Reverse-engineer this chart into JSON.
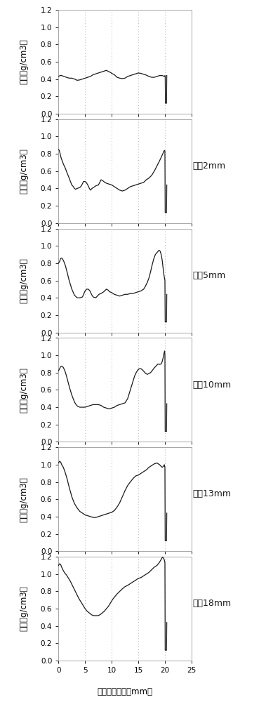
{
  "panels": [
    {
      "label": "",
      "profile": [
        [
          0.0,
          0.43
        ],
        [
          0.3,
          0.44
        ],
        [
          0.6,
          0.44
        ],
        [
          1.0,
          0.43
        ],
        [
          1.5,
          0.42
        ],
        [
          2.0,
          0.41
        ],
        [
          2.5,
          0.41
        ],
        [
          3.0,
          0.4
        ],
        [
          3.5,
          0.385
        ],
        [
          4.0,
          0.39
        ],
        [
          4.5,
          0.4
        ],
        [
          5.0,
          0.41
        ],
        [
          5.5,
          0.42
        ],
        [
          6.0,
          0.43
        ],
        [
          6.5,
          0.45
        ],
        [
          7.0,
          0.46
        ],
        [
          7.5,
          0.47
        ],
        [
          8.0,
          0.48
        ],
        [
          8.5,
          0.49
        ],
        [
          9.0,
          0.5
        ],
        [
          9.3,
          0.49
        ],
        [
          9.8,
          0.475
        ],
        [
          10.0,
          0.465
        ],
        [
          10.5,
          0.45
        ],
        [
          11.0,
          0.42
        ],
        [
          11.5,
          0.41
        ],
        [
          12.0,
          0.405
        ],
        [
          12.5,
          0.41
        ],
        [
          13.0,
          0.43
        ],
        [
          13.5,
          0.44
        ],
        [
          14.0,
          0.45
        ],
        [
          14.5,
          0.46
        ],
        [
          15.0,
          0.47
        ],
        [
          15.5,
          0.465
        ],
        [
          16.0,
          0.455
        ],
        [
          16.5,
          0.445
        ],
        [
          17.0,
          0.43
        ],
        [
          17.5,
          0.42
        ],
        [
          18.0,
          0.42
        ],
        [
          18.5,
          0.43
        ],
        [
          19.0,
          0.44
        ],
        [
          19.5,
          0.44
        ],
        [
          19.9,
          0.43
        ],
        [
          20.0,
          0.44
        ],
        [
          20.05,
          0.435
        ],
        [
          20.1,
          0.12
        ],
        [
          20.3,
          0.12
        ],
        [
          20.35,
          0.44
        ]
      ]
    },
    {
      "label": "压爰2mm",
      "profile": [
        [
          0.0,
          0.85
        ],
        [
          0.15,
          0.84
        ],
        [
          0.3,
          0.8
        ],
        [
          0.5,
          0.75
        ],
        [
          0.8,
          0.7
        ],
        [
          1.0,
          0.67
        ],
        [
          1.3,
          0.63
        ],
        [
          1.6,
          0.58
        ],
        [
          2.0,
          0.52
        ],
        [
          2.3,
          0.47
        ],
        [
          2.5,
          0.44
        ],
        [
          2.8,
          0.42
        ],
        [
          3.0,
          0.4
        ],
        [
          3.2,
          0.39
        ],
        [
          3.5,
          0.4
        ],
        [
          4.0,
          0.41
        ],
        [
          4.3,
          0.43
        ],
        [
          4.7,
          0.48
        ],
        [
          5.0,
          0.48
        ],
        [
          5.2,
          0.47
        ],
        [
          5.5,
          0.44
        ],
        [
          5.8,
          0.4
        ],
        [
          6.0,
          0.38
        ],
        [
          6.3,
          0.4
        ],
        [
          6.8,
          0.42
        ],
        [
          7.0,
          0.43
        ],
        [
          7.5,
          0.44
        ],
        [
          8.0,
          0.5
        ],
        [
          8.3,
          0.49
        ],
        [
          8.7,
          0.47
        ],
        [
          9.0,
          0.46
        ],
        [
          9.5,
          0.45
        ],
        [
          10.0,
          0.44
        ],
        [
          10.5,
          0.42
        ],
        [
          11.0,
          0.4
        ],
        [
          11.5,
          0.38
        ],
        [
          12.0,
          0.37
        ],
        [
          12.5,
          0.38
        ],
        [
          13.0,
          0.4
        ],
        [
          13.5,
          0.42
        ],
        [
          14.0,
          0.43
        ],
        [
          14.5,
          0.44
        ],
        [
          15.0,
          0.45
        ],
        [
          15.5,
          0.46
        ],
        [
          16.0,
          0.47
        ],
        [
          16.5,
          0.5
        ],
        [
          17.0,
          0.52
        ],
        [
          17.5,
          0.55
        ],
        [
          18.0,
          0.6
        ],
        [
          18.5,
          0.66
        ],
        [
          19.0,
          0.72
        ],
        [
          19.3,
          0.76
        ],
        [
          19.6,
          0.8
        ],
        [
          19.8,
          0.83
        ],
        [
          19.95,
          0.84
        ],
        [
          20.0,
          0.83
        ],
        [
          20.05,
          0.12
        ],
        [
          20.3,
          0.12
        ],
        [
          20.35,
          0.44
        ]
      ]
    },
    {
      "label": "压爰5mm",
      "profile": [
        [
          0.0,
          0.8
        ],
        [
          0.2,
          0.82
        ],
        [
          0.4,
          0.855
        ],
        [
          0.6,
          0.86
        ],
        [
          0.8,
          0.845
        ],
        [
          1.0,
          0.82
        ],
        [
          1.3,
          0.77
        ],
        [
          1.6,
          0.7
        ],
        [
          2.0,
          0.6
        ],
        [
          2.5,
          0.5
        ],
        [
          3.0,
          0.43
        ],
        [
          3.5,
          0.4
        ],
        [
          4.0,
          0.4
        ],
        [
          4.5,
          0.41
        ],
        [
          5.0,
          0.48
        ],
        [
          5.3,
          0.5
        ],
        [
          5.6,
          0.5
        ],
        [
          5.9,
          0.48
        ],
        [
          6.2,
          0.44
        ],
        [
          6.5,
          0.41
        ],
        [
          7.0,
          0.4
        ],
        [
          7.3,
          0.42
        ],
        [
          7.6,
          0.44
        ],
        [
          8.0,
          0.45
        ],
        [
          8.5,
          0.47
        ],
        [
          9.0,
          0.5
        ],
        [
          9.3,
          0.49
        ],
        [
          9.6,
          0.47
        ],
        [
          10.0,
          0.46
        ],
        [
          10.5,
          0.44
        ],
        [
          11.0,
          0.43
        ],
        [
          11.5,
          0.42
        ],
        [
          12.0,
          0.43
        ],
        [
          12.5,
          0.44
        ],
        [
          13.0,
          0.44
        ],
        [
          13.5,
          0.45
        ],
        [
          14.0,
          0.45
        ],
        [
          14.5,
          0.46
        ],
        [
          15.0,
          0.47
        ],
        [
          15.5,
          0.48
        ],
        [
          16.0,
          0.5
        ],
        [
          16.3,
          0.53
        ],
        [
          16.7,
          0.58
        ],
        [
          17.0,
          0.63
        ],
        [
          17.3,
          0.7
        ],
        [
          17.6,
          0.78
        ],
        [
          17.9,
          0.85
        ],
        [
          18.2,
          0.9
        ],
        [
          18.6,
          0.93
        ],
        [
          18.9,
          0.95
        ],
        [
          19.1,
          0.94
        ],
        [
          19.3,
          0.9
        ],
        [
          19.5,
          0.83
        ],
        [
          19.7,
          0.72
        ],
        [
          19.85,
          0.65
        ],
        [
          19.95,
          0.62
        ],
        [
          20.0,
          0.6
        ],
        [
          20.05,
          0.12
        ],
        [
          20.3,
          0.12
        ],
        [
          20.35,
          0.44
        ]
      ]
    },
    {
      "label": "压爰10mm",
      "profile": [
        [
          0.0,
          0.82
        ],
        [
          0.2,
          0.845
        ],
        [
          0.4,
          0.87
        ],
        [
          0.6,
          0.875
        ],
        [
          0.9,
          0.86
        ],
        [
          1.2,
          0.82
        ],
        [
          1.5,
          0.76
        ],
        [
          1.8,
          0.69
        ],
        [
          2.1,
          0.62
        ],
        [
          2.5,
          0.54
        ],
        [
          3.0,
          0.46
        ],
        [
          3.3,
          0.43
        ],
        [
          3.6,
          0.41
        ],
        [
          4.0,
          0.4
        ],
        [
          4.3,
          0.4
        ],
        [
          4.6,
          0.4
        ],
        [
          5.0,
          0.4
        ],
        [
          5.5,
          0.41
        ],
        [
          6.0,
          0.42
        ],
        [
          6.5,
          0.43
        ],
        [
          7.0,
          0.43
        ],
        [
          7.5,
          0.43
        ],
        [
          8.0,
          0.42
        ],
        [
          8.5,
          0.4
        ],
        [
          9.0,
          0.39
        ],
        [
          9.5,
          0.38
        ],
        [
          10.0,
          0.39
        ],
        [
          10.5,
          0.4
        ],
        [
          11.0,
          0.42
        ],
        [
          11.5,
          0.43
        ],
        [
          12.0,
          0.44
        ],
        [
          12.5,
          0.45
        ],
        [
          13.0,
          0.5
        ],
        [
          13.5,
          0.6
        ],
        [
          14.0,
          0.7
        ],
        [
          14.3,
          0.76
        ],
        [
          14.6,
          0.8
        ],
        [
          14.9,
          0.83
        ],
        [
          15.2,
          0.845
        ],
        [
          15.5,
          0.845
        ],
        [
          15.8,
          0.83
        ],
        [
          16.1,
          0.81
        ],
        [
          16.4,
          0.79
        ],
        [
          16.7,
          0.78
        ],
        [
          17.0,
          0.79
        ],
        [
          17.3,
          0.8
        ],
        [
          17.7,
          0.83
        ],
        [
          18.0,
          0.855
        ],
        [
          18.4,
          0.88
        ],
        [
          18.7,
          0.9
        ],
        [
          19.0,
          0.895
        ],
        [
          19.3,
          0.9
        ],
        [
          19.5,
          0.93
        ],
        [
          19.7,
          0.98
        ],
        [
          19.85,
          1.03
        ],
        [
          19.95,
          1.05
        ],
        [
          20.0,
          1.0
        ],
        [
          20.05,
          0.12
        ],
        [
          20.3,
          0.12
        ],
        [
          20.35,
          0.44
        ]
      ]
    },
    {
      "label": "压爰13mm",
      "profile": [
        [
          0.0,
          1.02
        ],
        [
          0.2,
          1.04
        ],
        [
          0.4,
          1.03
        ],
        [
          0.6,
          1.0
        ],
        [
          0.9,
          0.97
        ],
        [
          1.2,
          0.92
        ],
        [
          1.6,
          0.84
        ],
        [
          2.0,
          0.74
        ],
        [
          2.5,
          0.63
        ],
        [
          3.0,
          0.55
        ],
        [
          3.5,
          0.5
        ],
        [
          4.0,
          0.46
        ],
        [
          4.5,
          0.44
        ],
        [
          5.0,
          0.42
        ],
        [
          5.5,
          0.41
        ],
        [
          6.0,
          0.4
        ],
        [
          6.5,
          0.39
        ],
        [
          7.0,
          0.39
        ],
        [
          7.5,
          0.4
        ],
        [
          8.0,
          0.41
        ],
        [
          8.5,
          0.42
        ],
        [
          9.0,
          0.43
        ],
        [
          9.5,
          0.44
        ],
        [
          10.0,
          0.45
        ],
        [
          10.5,
          0.47
        ],
        [
          11.0,
          0.51
        ],
        [
          11.5,
          0.56
        ],
        [
          12.0,
          0.63
        ],
        [
          12.5,
          0.7
        ],
        [
          13.0,
          0.76
        ],
        [
          13.5,
          0.8
        ],
        [
          14.0,
          0.84
        ],
        [
          14.5,
          0.87
        ],
        [
          15.0,
          0.88
        ],
        [
          15.5,
          0.9
        ],
        [
          16.0,
          0.92
        ],
        [
          16.5,
          0.94
        ],
        [
          17.0,
          0.97
        ],
        [
          17.5,
          0.99
        ],
        [
          18.0,
          1.01
        ],
        [
          18.5,
          1.02
        ],
        [
          19.0,
          1.0
        ],
        [
          19.3,
          0.98
        ],
        [
          19.5,
          0.97
        ],
        [
          19.7,
          0.98
        ],
        [
          19.9,
          1.0
        ],
        [
          19.95,
          0.98
        ],
        [
          20.0,
          0.97
        ],
        [
          20.05,
          0.12
        ],
        [
          20.3,
          0.12
        ],
        [
          20.35,
          0.44
        ]
      ]
    },
    {
      "label": "压爰18mm",
      "profile": [
        [
          0.0,
          1.1
        ],
        [
          0.2,
          1.12
        ],
        [
          0.4,
          1.11
        ],
        [
          0.6,
          1.08
        ],
        [
          0.9,
          1.04
        ],
        [
          1.2,
          1.01
        ],
        [
          1.5,
          0.99
        ],
        [
          1.8,
          0.96
        ],
        [
          2.2,
          0.92
        ],
        [
          2.6,
          0.87
        ],
        [
          3.0,
          0.82
        ],
        [
          3.4,
          0.77
        ],
        [
          3.8,
          0.72
        ],
        [
          4.2,
          0.68
        ],
        [
          4.6,
          0.64
        ],
        [
          5.0,
          0.6
        ],
        [
          5.4,
          0.57
        ],
        [
          5.8,
          0.55
        ],
        [
          6.2,
          0.53
        ],
        [
          6.6,
          0.52
        ],
        [
          7.0,
          0.52
        ],
        [
          7.4,
          0.52
        ],
        [
          7.8,
          0.53
        ],
        [
          8.2,
          0.55
        ],
        [
          8.6,
          0.57
        ],
        [
          9.0,
          0.6
        ],
        [
          9.4,
          0.63
        ],
        [
          9.8,
          0.67
        ],
        [
          10.2,
          0.71
        ],
        [
          10.6,
          0.74
        ],
        [
          11.0,
          0.77
        ],
        [
          11.5,
          0.8
        ],
        [
          12.0,
          0.83
        ],
        [
          12.5,
          0.855
        ],
        [
          13.0,
          0.87
        ],
        [
          13.5,
          0.89
        ],
        [
          14.0,
          0.91
        ],
        [
          14.5,
          0.93
        ],
        [
          15.0,
          0.95
        ],
        [
          15.5,
          0.96
        ],
        [
          16.0,
          0.98
        ],
        [
          16.5,
          1.0
        ],
        [
          17.0,
          1.02
        ],
        [
          17.5,
          1.05
        ],
        [
          18.0,
          1.08
        ],
        [
          18.5,
          1.1
        ],
        [
          18.9,
          1.13
        ],
        [
          19.2,
          1.16
        ],
        [
          19.4,
          1.18
        ],
        [
          19.55,
          1.2
        ],
        [
          19.65,
          1.19
        ],
        [
          19.75,
          1.18
        ],
        [
          19.85,
          1.17
        ],
        [
          19.95,
          1.15
        ],
        [
          20.0,
          1.13
        ],
        [
          20.05,
          0.12
        ],
        [
          20.3,
          0.12
        ],
        [
          20.35,
          0.44
        ]
      ]
    }
  ],
  "vlines": [
    5,
    10,
    15,
    20
  ],
  "xlim": [
    0,
    25
  ],
  "ylim": [
    0.0,
    1.2
  ],
  "yticks": [
    0.0,
    0.2,
    0.4,
    0.6,
    0.8,
    1.0,
    1.2
  ],
  "xticks": [
    0,
    5,
    10,
    15,
    20,
    25
  ],
  "xlabel": "距表面的距离（mm）",
  "ylabel_top": "密度（g/cm",
  "ylabel_sup": "3",
  "ylabel_bot": "）",
  "line_color": "#1a1a1a",
  "vline_color": "#b0b0b0",
  "bg_color": "#ffffff",
  "label_fontsize": 8.5,
  "tick_fontsize": 7.5,
  "annotation_fontsize": 9.0,
  "ylabel_fontsize": 8.5
}
